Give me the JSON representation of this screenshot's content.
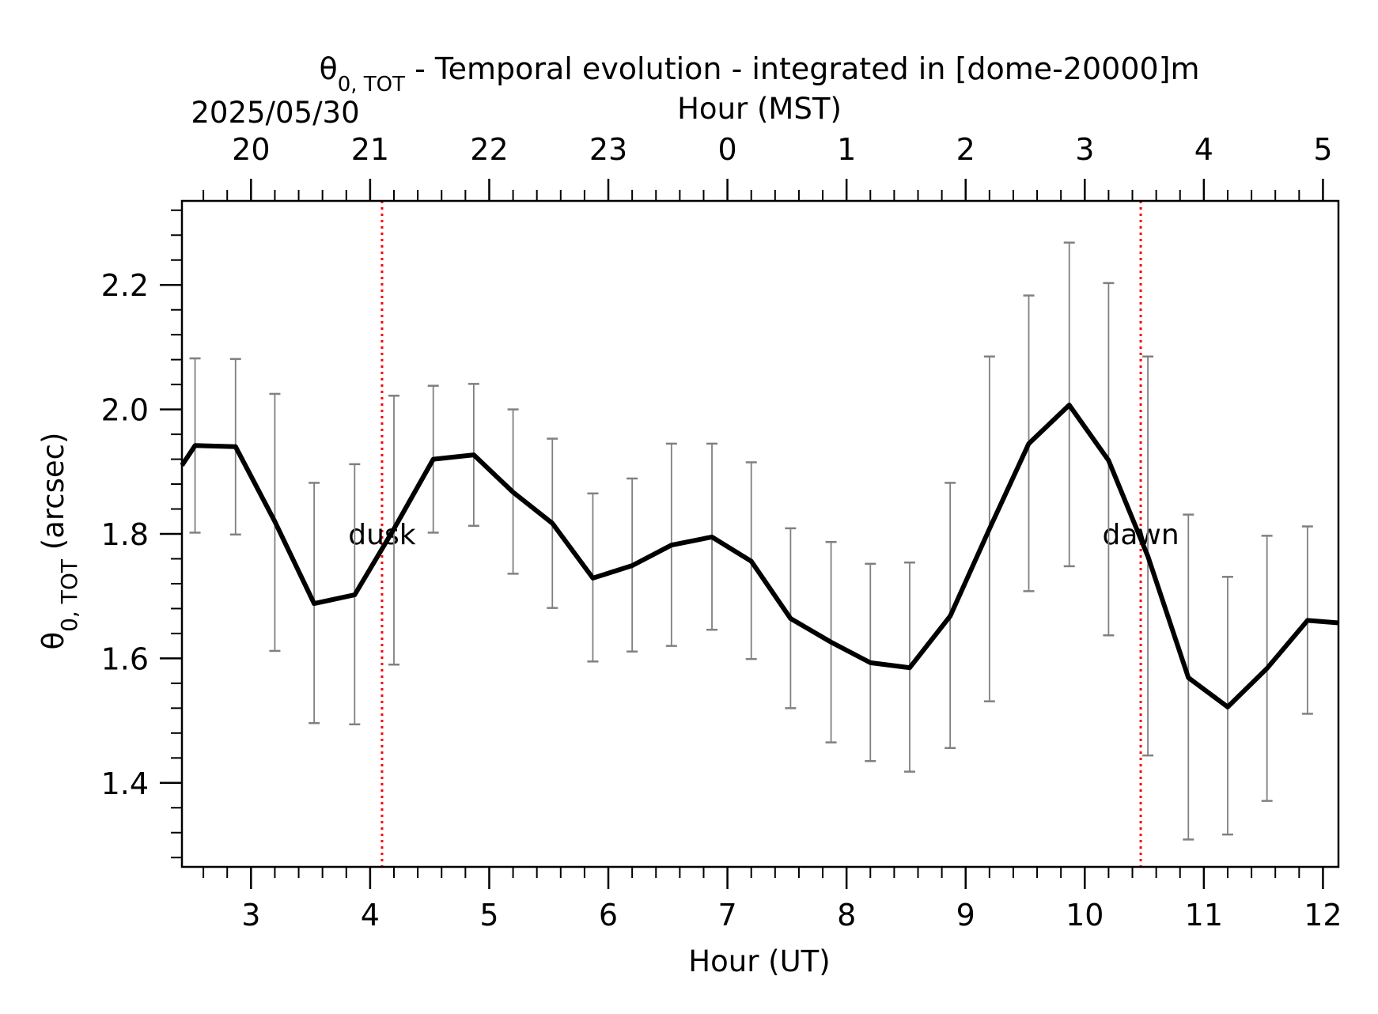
{
  "chart_data": {
    "type": "line",
    "title_prefix": "θ",
    "title_sub": "0, TOT",
    "title_rest": " - Temporal evolution - integrated in [dome-20000]m",
    "date_label": "2025/05/30",
    "xlabel": "Hour (UT)",
    "x2label": "Hour (MST)",
    "ylabel_prefix": "θ",
    "ylabel_sub": "0, TOT",
    "ylabel_rest": " (arcsec)",
    "xlim": [
      2.42,
      12.13
    ],
    "ylim": [
      1.265,
      2.335
    ],
    "x_ticks": [
      3,
      4,
      5,
      6,
      7,
      8,
      9,
      10,
      11,
      12
    ],
    "x_tick_labels": [
      "3",
      "4",
      "5",
      "6",
      "7",
      "8",
      "9",
      "10",
      "11",
      "12"
    ],
    "top_ticks_ut": [
      3,
      4,
      5,
      6,
      7,
      8,
      9,
      10,
      11,
      12
    ],
    "top_tick_labels": [
      "20",
      "21",
      "22",
      "23",
      "0",
      "1",
      "2",
      "3",
      "4",
      "5"
    ],
    "y_ticks": [
      1.4,
      1.6,
      1.8,
      2.0,
      2.2
    ],
    "y_tick_labels": [
      "1.4",
      "1.6",
      "1.8",
      "2.0",
      "2.2"
    ],
    "grid": false,
    "line_color": "#000000",
    "errorbar_color": "#808080",
    "event_color": "#ff0000",
    "events": [
      {
        "label": "dusk",
        "x": 4.1
      },
      {
        "label": "dawn",
        "x": 10.47
      }
    ],
    "series": [
      {
        "x": [
          2.42,
          2.53,
          2.87,
          3.2,
          3.53,
          3.87,
          4.2,
          4.53,
          4.87,
          5.2,
          5.53,
          5.87,
          6.2,
          6.53,
          6.87,
          7.2,
          7.53,
          7.87,
          8.2,
          8.53,
          8.87,
          9.2,
          9.53,
          9.87,
          10.2,
          10.53,
          10.87,
          11.2,
          11.53,
          11.87,
          12.13
        ],
        "y": [
          1.91,
          1.942,
          1.94,
          1.82,
          1.688,
          1.702,
          1.808,
          1.92,
          1.927,
          1.867,
          1.817,
          1.729,
          1.749,
          1.782,
          1.795,
          1.756,
          1.664,
          1.626,
          1.593,
          1.585,
          1.668,
          1.808,
          1.945,
          2.007,
          1.918,
          1.764,
          1.569,
          1.522,
          1.584,
          1.661,
          1.657
        ],
        "yerr_low": [
          null,
          1.802,
          1.799,
          1.612,
          1.496,
          1.494,
          1.59,
          1.802,
          1.813,
          1.736,
          1.681,
          1.595,
          1.611,
          1.62,
          1.646,
          1.599,
          1.52,
          1.465,
          1.435,
          1.418,
          1.456,
          1.531,
          1.708,
          1.748,
          1.637,
          1.444,
          1.309,
          1.317,
          1.371,
          1.511,
          null
        ],
        "yerr_high": [
          null,
          2.082,
          2.081,
          2.025,
          1.882,
          1.912,
          2.022,
          2.038,
          2.041,
          2.0,
          1.953,
          1.865,
          1.889,
          1.945,
          1.945,
          1.915,
          1.809,
          1.787,
          1.752,
          1.754,
          1.882,
          2.085,
          2.183,
          2.268,
          2.203,
          2.085,
          1.831,
          1.731,
          1.797,
          1.812,
          null
        ]
      }
    ]
  }
}
